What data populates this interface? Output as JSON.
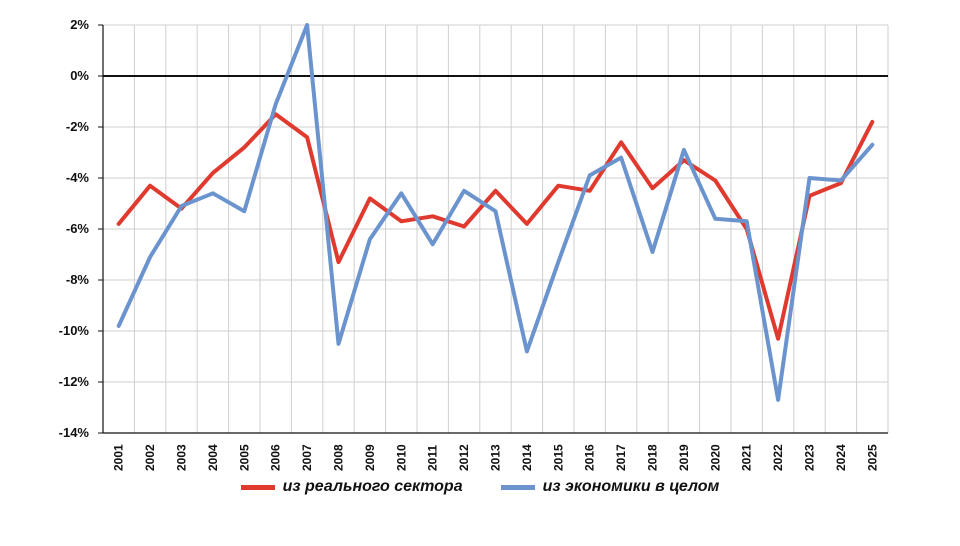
{
  "chart_data": {
    "type": "line",
    "x": [
      "2001",
      "2002",
      "2003",
      "2004",
      "2005",
      "2006",
      "2007",
      "2008",
      "2009",
      "2010",
      "2011",
      "2012",
      "2013",
      "2014",
      "2015",
      "2016",
      "2017",
      "2018",
      "2019",
      "2020",
      "2021",
      "2022",
      "2023",
      "2024",
      "2025"
    ],
    "ylim": [
      -14,
      2
    ],
    "yticks": [
      2,
      0,
      -2,
      -4,
      -6,
      -8,
      -10,
      -12,
      -14
    ],
    "ytick_labels": [
      "2%",
      "0%",
      "-2%",
      "-4%",
      "-6%",
      "-8%",
      "-10%",
      "-12%",
      "-14%"
    ],
    "grid": true,
    "legend_position": "bottom",
    "series": [
      {
        "name": "из реального сектора",
        "color": "#e03a2f",
        "values": [
          -5.8,
          -4.3,
          -5.2,
          -3.8,
          -2.8,
          -1.5,
          -2.4,
          -7.3,
          -4.8,
          -5.7,
          -5.5,
          -5.9,
          -4.5,
          -5.8,
          -4.3,
          -4.5,
          -2.6,
          -4.4,
          -3.3,
          -4.1,
          -6.0,
          -10.3,
          -4.7,
          -4.2,
          -1.8
        ]
      },
      {
        "name": "из экономики в целом",
        "color": "#6b94cf",
        "values": [
          -9.8,
          -7.1,
          -5.1,
          -4.6,
          -5.3,
          -1.1,
          2.0,
          -10.5,
          -6.4,
          -4.6,
          -6.6,
          -4.5,
          -5.3,
          -10.8,
          -7.3,
          -3.9,
          -3.2,
          -6.9,
          -2.9,
          -5.6,
          -5.7,
          -12.7,
          -4.0,
          -4.1,
          -2.7
        ]
      }
    ]
  }
}
